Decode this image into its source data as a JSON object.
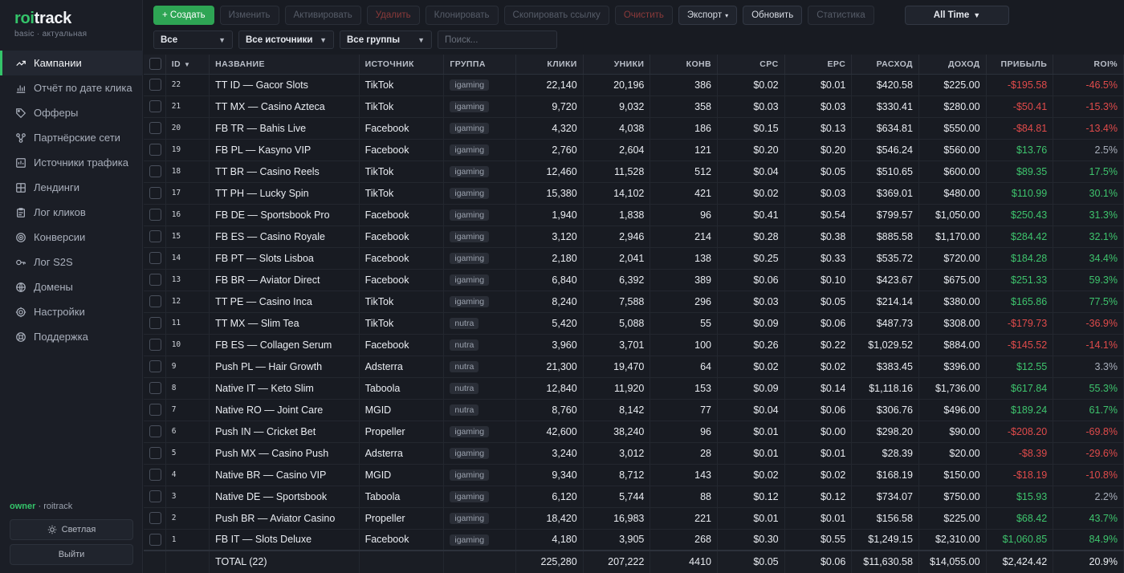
{
  "brand": {
    "logo_accent": "roi",
    "logo_rest": "track",
    "subtitle": "basic · актуальная"
  },
  "nav": [
    {
      "label": "Кампании",
      "icon": "trend-up-icon",
      "active": true
    },
    {
      "label": "Отчёт по дате клика",
      "icon": "bar-chart-icon"
    },
    {
      "label": "Офферы",
      "icon": "tag-icon"
    },
    {
      "label": "Партнёрские сети",
      "icon": "network-icon"
    },
    {
      "label": "Источники трафика",
      "icon": "traffic-icon"
    },
    {
      "label": "Лендинги",
      "icon": "layout-icon"
    },
    {
      "label": "Лог кликов",
      "icon": "clipboard-icon"
    },
    {
      "label": "Конверсии",
      "icon": "target-icon"
    },
    {
      "label": "Лог S2S",
      "icon": "key-icon"
    },
    {
      "label": "Домены",
      "icon": "globe-icon"
    },
    {
      "label": "Настройки",
      "icon": "gear-icon"
    },
    {
      "label": "Поддержка",
      "icon": "lifebuoy-icon"
    }
  ],
  "user": {
    "role": "owner",
    "separator": " · ",
    "name": "roitrack"
  },
  "sidebar_buttons": {
    "theme": "Светлая",
    "logout": "Выйти"
  },
  "toolbar": {
    "create": "+ Создать",
    "edit": "Изменить",
    "activate": "Активировать",
    "delete": "Удалить",
    "clone": "Клонировать",
    "copy_link": "Скопировать ссылку",
    "clear": "Очистить",
    "export": "Экспорт",
    "refresh": "Обновить",
    "stats": "Статистика",
    "range": "All Time"
  },
  "filters": {
    "status": "Все",
    "sources": "Все источники",
    "groups": "Все группы",
    "search_placeholder": "Поиск..."
  },
  "columns": [
    "ID",
    "НАЗВАНИЕ",
    "ИСТОЧНИК",
    "ГРУППА",
    "КЛИКИ",
    "УНИКИ",
    "КОНВ",
    "CPC",
    "EPC",
    "РАСХОД",
    "ДОХОД",
    "ПРИБЫЛЬ",
    "ROI%"
  ],
  "rows": [
    {
      "id": "22",
      "name": "TT ID — Gacor Slots",
      "source": "TikTok",
      "group": "igaming",
      "clicks": "22,140",
      "uniques": "20,196",
      "conv": "386",
      "cpc": "$0.02",
      "epc": "$0.01",
      "spend": "$420.58",
      "revenue": "$225.00",
      "profit": "-$195.58",
      "roi": "-46.5%",
      "trend": "neg"
    },
    {
      "id": "21",
      "name": "TT MX — Casino Azteca",
      "source": "TikTok",
      "group": "igaming",
      "clicks": "9,720",
      "uniques": "9,032",
      "conv": "358",
      "cpc": "$0.03",
      "epc": "$0.03",
      "spend": "$330.41",
      "revenue": "$280.00",
      "profit": "-$50.41",
      "roi": "-15.3%",
      "trend": "neg"
    },
    {
      "id": "20",
      "name": "FB TR — Bahis Live",
      "source": "Facebook",
      "group": "igaming",
      "clicks": "4,320",
      "uniques": "4,038",
      "conv": "186",
      "cpc": "$0.15",
      "epc": "$0.13",
      "spend": "$634.81",
      "revenue": "$550.00",
      "profit": "-$84.81",
      "roi": "-13.4%",
      "trend": "neg"
    },
    {
      "id": "19",
      "name": "FB PL — Kasyno VIP",
      "source": "Facebook",
      "group": "igaming",
      "clicks": "2,760",
      "uniques": "2,604",
      "conv": "121",
      "cpc": "$0.20",
      "epc": "$0.20",
      "spend": "$546.24",
      "revenue": "$560.00",
      "profit": "$13.76",
      "roi": "2.5%",
      "trend": "low"
    },
    {
      "id": "18",
      "name": "TT BR — Casino Reels",
      "source": "TikTok",
      "group": "igaming",
      "clicks": "12,460",
      "uniques": "11,528",
      "conv": "512",
      "cpc": "$0.04",
      "epc": "$0.05",
      "spend": "$510.65",
      "revenue": "$600.00",
      "profit": "$89.35",
      "roi": "17.5%",
      "trend": "pos"
    },
    {
      "id": "17",
      "name": "TT PH — Lucky Spin",
      "source": "TikTok",
      "group": "igaming",
      "clicks": "15,380",
      "uniques": "14,102",
      "conv": "421",
      "cpc": "$0.02",
      "epc": "$0.03",
      "spend": "$369.01",
      "revenue": "$480.00",
      "profit": "$110.99",
      "roi": "30.1%",
      "trend": "pos"
    },
    {
      "id": "16",
      "name": "FB DE — Sportsbook Pro",
      "source": "Facebook",
      "group": "igaming",
      "clicks": "1,940",
      "uniques": "1,838",
      "conv": "96",
      "cpc": "$0.41",
      "epc": "$0.54",
      "spend": "$799.57",
      "revenue": "$1,050.00",
      "profit": "$250.43",
      "roi": "31.3%",
      "trend": "pos"
    },
    {
      "id": "15",
      "name": "FB ES — Casino Royale",
      "source": "Facebook",
      "group": "igaming",
      "clicks": "3,120",
      "uniques": "2,946",
      "conv": "214",
      "cpc": "$0.28",
      "epc": "$0.38",
      "spend": "$885.58",
      "revenue": "$1,170.00",
      "profit": "$284.42",
      "roi": "32.1%",
      "trend": "pos"
    },
    {
      "id": "14",
      "name": "FB PT — Slots Lisboa",
      "source": "Facebook",
      "group": "igaming",
      "clicks": "2,180",
      "uniques": "2,041",
      "conv": "138",
      "cpc": "$0.25",
      "epc": "$0.33",
      "spend": "$535.72",
      "revenue": "$720.00",
      "profit": "$184.28",
      "roi": "34.4%",
      "trend": "pos"
    },
    {
      "id": "13",
      "name": "FB BR — Aviator Direct",
      "source": "Facebook",
      "group": "igaming",
      "clicks": "6,840",
      "uniques": "6,392",
      "conv": "389",
      "cpc": "$0.06",
      "epc": "$0.10",
      "spend": "$423.67",
      "revenue": "$675.00",
      "profit": "$251.33",
      "roi": "59.3%",
      "trend": "pos"
    },
    {
      "id": "12",
      "name": "TT PE — Casino Inca",
      "source": "TikTok",
      "group": "igaming",
      "clicks": "8,240",
      "uniques": "7,588",
      "conv": "296",
      "cpc": "$0.03",
      "epc": "$0.05",
      "spend": "$214.14",
      "revenue": "$380.00",
      "profit": "$165.86",
      "roi": "77.5%",
      "trend": "pos"
    },
    {
      "id": "11",
      "name": "TT MX — Slim Tea",
      "source": "TikTok",
      "group": "nutra",
      "clicks": "5,420",
      "uniques": "5,088",
      "conv": "55",
      "cpc": "$0.09",
      "epc": "$0.06",
      "spend": "$487.73",
      "revenue": "$308.00",
      "profit": "-$179.73",
      "roi": "-36.9%",
      "trend": "neg"
    },
    {
      "id": "10",
      "name": "FB ES — Collagen Serum",
      "source": "Facebook",
      "group": "nutra",
      "clicks": "3,960",
      "uniques": "3,701",
      "conv": "100",
      "cpc": "$0.26",
      "epc": "$0.22",
      "spend": "$1,029.52",
      "revenue": "$884.00",
      "profit": "-$145.52",
      "roi": "-14.1%",
      "trend": "neg"
    },
    {
      "id": "9",
      "name": "Push PL — Hair Growth",
      "source": "Adsterra",
      "group": "nutra",
      "clicks": "21,300",
      "uniques": "19,470",
      "conv": "64",
      "cpc": "$0.02",
      "epc": "$0.02",
      "spend": "$383.45",
      "revenue": "$396.00",
      "profit": "$12.55",
      "roi": "3.3%",
      "trend": "low"
    },
    {
      "id": "8",
      "name": "Native IT — Keto Slim",
      "source": "Taboola",
      "group": "nutra",
      "clicks": "12,840",
      "uniques": "11,920",
      "conv": "153",
      "cpc": "$0.09",
      "epc": "$0.14",
      "spend": "$1,118.16",
      "revenue": "$1,736.00",
      "profit": "$617.84",
      "roi": "55.3%",
      "trend": "pos"
    },
    {
      "id": "7",
      "name": "Native RO — Joint Care",
      "source": "MGID",
      "group": "nutra",
      "clicks": "8,760",
      "uniques": "8,142",
      "conv": "77",
      "cpc": "$0.04",
      "epc": "$0.06",
      "spend": "$306.76",
      "revenue": "$496.00",
      "profit": "$189.24",
      "roi": "61.7%",
      "trend": "pos"
    },
    {
      "id": "6",
      "name": "Push IN — Cricket Bet",
      "source": "Propeller",
      "group": "igaming",
      "clicks": "42,600",
      "uniques": "38,240",
      "conv": "96",
      "cpc": "$0.01",
      "epc": "$0.00",
      "spend": "$298.20",
      "revenue": "$90.00",
      "profit": "-$208.20",
      "roi": "-69.8%",
      "trend": "neg"
    },
    {
      "id": "5",
      "name": "Push MX — Casino Push",
      "source": "Adsterra",
      "group": "igaming",
      "clicks": "3,240",
      "uniques": "3,012",
      "conv": "28",
      "cpc": "$0.01",
      "epc": "$0.01",
      "spend": "$28.39",
      "revenue": "$20.00",
      "profit": "-$8.39",
      "roi": "-29.6%",
      "trend": "neg"
    },
    {
      "id": "4",
      "name": "Native BR — Casino VIP",
      "source": "MGID",
      "group": "igaming",
      "clicks": "9,340",
      "uniques": "8,712",
      "conv": "143",
      "cpc": "$0.02",
      "epc": "$0.02",
      "spend": "$168.19",
      "revenue": "$150.00",
      "profit": "-$18.19",
      "roi": "-10.8%",
      "trend": "neg"
    },
    {
      "id": "3",
      "name": "Native DE — Sportsbook",
      "source": "Taboola",
      "group": "igaming",
      "clicks": "6,120",
      "uniques": "5,744",
      "conv": "88",
      "cpc": "$0.12",
      "epc": "$0.12",
      "spend": "$734.07",
      "revenue": "$750.00",
      "profit": "$15.93",
      "roi": "2.2%",
      "trend": "low"
    },
    {
      "id": "2",
      "name": "Push BR — Aviator Casino",
      "source": "Propeller",
      "group": "igaming",
      "clicks": "18,420",
      "uniques": "16,983",
      "conv": "221",
      "cpc": "$0.01",
      "epc": "$0.01",
      "spend": "$156.58",
      "revenue": "$225.00",
      "profit": "$68.42",
      "roi": "43.7%",
      "trend": "pos"
    },
    {
      "id": "1",
      "name": "FB IT — Slots Deluxe",
      "source": "Facebook",
      "group": "igaming",
      "clicks": "4,180",
      "uniques": "3,905",
      "conv": "268",
      "cpc": "$0.30",
      "epc": "$0.55",
      "spend": "$1,249.15",
      "revenue": "$2,310.00",
      "profit": "$1,060.85",
      "roi": "84.9%",
      "trend": "pos"
    }
  ],
  "total": {
    "label": "TOTAL (22)",
    "clicks": "225,280",
    "uniques": "207,222",
    "conv": "4410",
    "cpc": "$0.05",
    "epc": "$0.06",
    "spend": "$11,630.58",
    "revenue": "$14,055.00",
    "profit": "$2,424.42",
    "roi": "20.9%"
  },
  "colors": {
    "accent": "#34c46a",
    "negative": "#e04b4b",
    "positive": "#3ec46d",
    "background": "#181b22"
  }
}
